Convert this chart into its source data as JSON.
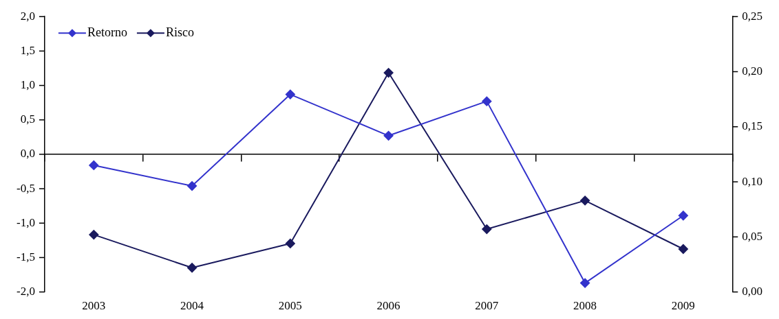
{
  "chart_data": {
    "type": "line",
    "categories": [
      "2003",
      "2004",
      "2005",
      "2006",
      "2007",
      "2008",
      "2009"
    ],
    "series": [
      {
        "name": "Retorno",
        "color": "#3333cc",
        "values": [
          -0.16,
          -0.46,
          0.87,
          0.27,
          0.77,
          -1.87,
          -0.89
        ]
      },
      {
        "name": "Risco",
        "color": "#1a1a5e",
        "axis": "y2",
        "values": [
          0.052,
          0.022,
          0.044,
          0.199,
          0.057,
          0.083,
          0.039
        ]
      }
    ],
    "ylim": [
      -2,
      2
    ],
    "yticks": [
      {
        "value": -2,
        "label": "-2,0"
      },
      {
        "value": -1.5,
        "label": "-1,5"
      },
      {
        "value": -1,
        "label": "-1,0"
      },
      {
        "value": -0.5,
        "label": "-0,5"
      },
      {
        "value": 0,
        "label": "0,0"
      },
      {
        "value": 0.5,
        "label": "0,5"
      },
      {
        "value": 1,
        "label": "1,0"
      },
      {
        "value": 1.5,
        "label": "1,5"
      },
      {
        "value": 2,
        "label": "2,0"
      }
    ],
    "y2lim": [
      0,
      0.25
    ],
    "y2ticks": [
      {
        "value": 0,
        "label": "0,00"
      },
      {
        "value": 0.05,
        "label": "0,05"
      },
      {
        "value": 0.1,
        "label": "0,10"
      },
      {
        "value": 0.15,
        "label": "0,15"
      },
      {
        "value": 0.2,
        "label": "0,20"
      },
      {
        "value": 0.25,
        "label": "0,25"
      }
    ],
    "marker": "diamond",
    "legend": "top left"
  }
}
